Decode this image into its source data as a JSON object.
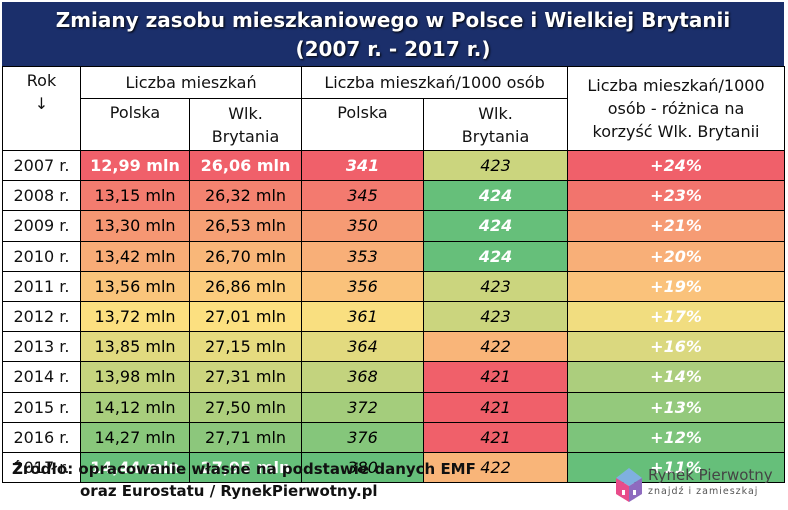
{
  "title": {
    "line1": "Zmiany zasobu mieszkaniowego w Polsce i Wielkiej Brytanii",
    "line2": "(2007 r. - 2017 r.)"
  },
  "headers": {
    "rok": "Rok",
    "rok_arrow": "↓",
    "liczba": "Liczba mieszkań",
    "per1000": "Liczba mieszkań/1000 osób",
    "diff_line1": "Liczba mieszkań/1000",
    "diff_line2": "osób - różnica na",
    "diff_line3": "korzyść Wlk. Brytanii",
    "polska": "Polska",
    "wlk_line1": "Wlk.",
    "wlk_line2": "Brytania"
  },
  "rows": [
    {
      "year": "2007 r.",
      "pl": "12,99 mln",
      "uk": "26,06 mln",
      "pl1000": "341",
      "uk1000": "423",
      "diff": "+24%"
    },
    {
      "year": "2008 r.",
      "pl": "13,15 mln",
      "uk": "26,32 mln",
      "pl1000": "345",
      "uk1000": "424",
      "diff": "+23%"
    },
    {
      "year": "2009 r.",
      "pl": "13,30 mln",
      "uk": "26,53 mln",
      "pl1000": "350",
      "uk1000": "424",
      "diff": "+21%"
    },
    {
      "year": "2010 r.",
      "pl": "13,42 mln",
      "uk": "26,70 mln",
      "pl1000": "353",
      "uk1000": "424",
      "diff": "+20%"
    },
    {
      "year": "2011 r.",
      "pl": "13,56 mln",
      "uk": "26,86 mln",
      "pl1000": "356",
      "uk1000": "423",
      "diff": "+19%"
    },
    {
      "year": "2012 r.",
      "pl": "13,72 mln",
      "uk": "27,01 mln",
      "pl1000": "361",
      "uk1000": "423",
      "diff": "+17%"
    },
    {
      "year": "2013 r.",
      "pl": "13,85 mln",
      "uk": "27,15 mln",
      "pl1000": "364",
      "uk1000": "422",
      "diff": "+16%"
    },
    {
      "year": "2014 r.",
      "pl": "13,98 mln",
      "uk": "27,31 mln",
      "pl1000": "368",
      "uk1000": "421",
      "diff": "+14%"
    },
    {
      "year": "2015 r.",
      "pl": "14,12 mln",
      "uk": "27,50 mln",
      "pl1000": "372",
      "uk1000": "421",
      "diff": "+13%"
    },
    {
      "year": "2016 r.",
      "pl": "14,27 mln",
      "uk": "27,71 mln",
      "pl1000": "376",
      "uk1000": "421",
      "diff": "+12%"
    },
    {
      "year": "2017 r.",
      "pl": "14,44 mln",
      "uk": "27,95 mln",
      "pl1000": "380",
      "uk1000": "422",
      "diff": "+11%"
    }
  ],
  "colors": {
    "title_bg": "#1b2f6b",
    "scale_red": "#f0606a",
    "scale_yellow": "#fde080",
    "scale_green": "#66bf7a"
  },
  "source": {
    "line1": "Źródło: opracowanie własne na podstawie danych EMF",
    "line2": "oraz Eurostatu / RynekPierwotny.pl"
  },
  "logo": {
    "brand": "Rynek Pierwotny",
    "tagline": "znajdź i zamieszkaj"
  }
}
